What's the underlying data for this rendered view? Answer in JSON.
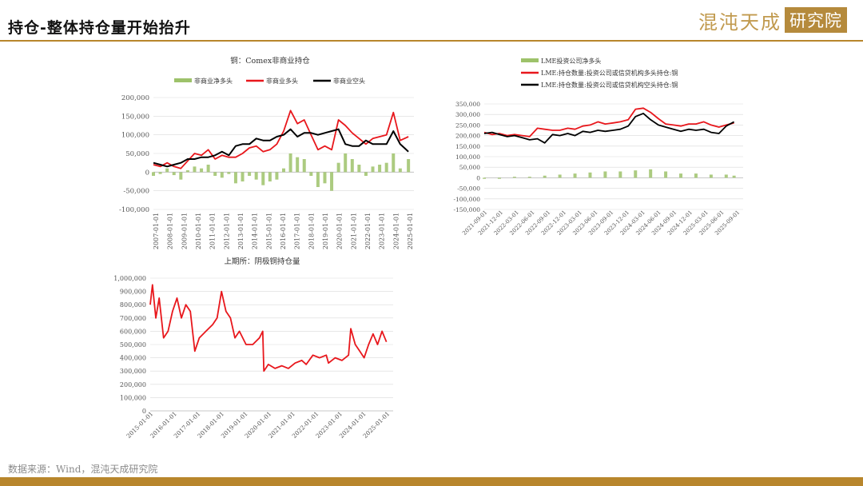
{
  "page": {
    "title": "持仓-整体持仓量开始抬升",
    "logo_text": "混沌天成",
    "logo_box": "研究院",
    "source": "数据来源：Wind，混沌天成研究院"
  },
  "colors": {
    "net_long": "#9dc26a",
    "red": "#e8171c",
    "black": "#000000",
    "gold": "#b8862c"
  },
  "chart_data": [
    {
      "type": "line",
      "title": "铜：Comex非商业持仓",
      "legend": [
        "非商业净多头",
        "非商业多头",
        "非商业空头"
      ],
      "ylim": [
        -100000,
        200000
      ],
      "yticks": [
        "200,000",
        "150,000",
        "100,000",
        "50,000",
        "0",
        "-50,000",
        "-100,000"
      ],
      "xticks": [
        "2007-01-01",
        "2008-01-01",
        "2009-01-01",
        "2010-01-01",
        "2011-01-01",
        "2012-01-01",
        "2013-01-01",
        "2014-01-01",
        "2015-01-01",
        "2016-01-01",
        "2017-01-01",
        "2018-01-01",
        "2019-01-01",
        "2020-01-01",
        "2021-01-01",
        "2022-01-01",
        "2023-01-01",
        "2024-01-01",
        "2025-01-01"
      ],
      "series": [
        {
          "name": "非商业净多头",
          "style": "bar",
          "x": [
            2007,
            2007.5,
            2008,
            2008.5,
            2009,
            2009.5,
            2010,
            2010.5,
            2011,
            2011.5,
            2012,
            2012.5,
            2013,
            2013.5,
            2014,
            2014.5,
            2015,
            2015.5,
            2016,
            2016.5,
            2017,
            2017.5,
            2018,
            2018.5,
            2019,
            2019.5,
            2020,
            2020.5,
            2021,
            2021.5,
            2022,
            2022.5,
            2023,
            2023.5,
            2024,
            2024.5,
            2025,
            2025.6
          ],
          "values": [
            -10000,
            -5000,
            10000,
            -8000,
            -20000,
            5000,
            15000,
            10000,
            20000,
            -10000,
            -15000,
            -5000,
            -30000,
            -25000,
            -10000,
            -20000,
            -35000,
            -25000,
            -20000,
            10000,
            50000,
            40000,
            35000,
            -10000,
            -40000,
            -30000,
            -50000,
            25000,
            50000,
            35000,
            20000,
            -10000,
            15000,
            20000,
            25000,
            50000,
            10000,
            35000
          ]
        },
        {
          "name": "非商业多头",
          "style": "line",
          "x": [
            2007,
            2007.5,
            2008,
            2008.5,
            2009,
            2009.5,
            2010,
            2010.5,
            2011,
            2011.5,
            2012,
            2012.5,
            2013,
            2013.5,
            2014,
            2014.5,
            2015,
            2015.5,
            2016,
            2016.5,
            2017,
            2017.5,
            2018,
            2018.5,
            2019,
            2019.5,
            2020,
            2020.5,
            2021,
            2021.5,
            2022,
            2022.5,
            2023,
            2023.5,
            2024,
            2024.5,
            2025,
            2025.6
          ],
          "values": [
            20000,
            15000,
            25000,
            15000,
            10000,
            30000,
            50000,
            45000,
            60000,
            35000,
            45000,
            40000,
            40000,
            50000,
            65000,
            70000,
            55000,
            60000,
            75000,
            110000,
            165000,
            130000,
            140000,
            100000,
            60000,
            70000,
            60000,
            140000,
            125000,
            105000,
            90000,
            75000,
            90000,
            95000,
            100000,
            160000,
            85000,
            95000
          ]
        },
        {
          "name": "非商业空头",
          "style": "line",
          "x": [
            2007,
            2007.5,
            2008,
            2008.5,
            2009,
            2009.5,
            2010,
            2010.5,
            2011,
            2011.5,
            2012,
            2012.5,
            2013,
            2013.5,
            2014,
            2014.5,
            2015,
            2015.5,
            2016,
            2016.5,
            2017,
            2017.5,
            2018,
            2018.5,
            2019,
            2019.5,
            2020,
            2020.5,
            2021,
            2021.5,
            2022,
            2022.5,
            2023,
            2023.5,
            2024,
            2024.5,
            2025,
            2025.6
          ],
          "values": [
            25000,
            20000,
            15000,
            20000,
            25000,
            35000,
            35000,
            40000,
            40000,
            45000,
            55000,
            45000,
            70000,
            75000,
            75000,
            90000,
            85000,
            85000,
            95000,
            100000,
            115000,
            95000,
            105000,
            105000,
            100000,
            105000,
            110000,
            115000,
            75000,
            70000,
            70000,
            85000,
            75000,
            75000,
            75000,
            110000,
            75000,
            55000
          ]
        }
      ]
    },
    {
      "type": "line",
      "title": "",
      "legend": [
        "LME投资公司净多头",
        "LME:持仓数量:投资公司或信贷机构多头持仓:铜",
        "LME:持仓数量:投资公司或信贷机构空头持仓:铜"
      ],
      "ylim": [
        -150000,
        350000
      ],
      "yticks": [
        "350,000",
        "300,000",
        "250,000",
        "200,000",
        "150,000",
        "100,000",
        "50,000",
        "0",
        "-50,000",
        "-100,000",
        "-150,000"
      ],
      "xticks": [
        "2021-09-01",
        "2021-12-01",
        "2022-03-01",
        "2022-06-01",
        "2022-09-01",
        "2022-12-01",
        "2023-03-01",
        "2023-06-01",
        "2023-09-01",
        "2023-12-01",
        "2024-03-01",
        "2024-06-01",
        "2024-09-01",
        "2024-12-01",
        "2025-03-01",
        "2025-06-01",
        "2025-09-01"
      ],
      "series": [
        {
          "name": "LME投资公司净多头",
          "style": "bar",
          "x": [
            2021.67,
            2021.92,
            2022.17,
            2022.42,
            2022.67,
            2022.92,
            2023.17,
            2023.42,
            2023.67,
            2023.92,
            2024.17,
            2024.42,
            2024.67,
            2024.92,
            2025.17,
            2025.42,
            2025.67,
            2025.8
          ],
          "values": [
            -5000,
            -5000,
            5000,
            5000,
            10000,
            15000,
            20000,
            25000,
            30000,
            30000,
            35000,
            40000,
            30000,
            20000,
            20000,
            15000,
            15000,
            10000
          ]
        },
        {
          "name": "LME:持仓数量:投资公司或信贷机构多头持仓:铜",
          "style": "line",
          "x": [
            2021.67,
            2021.8,
            2021.92,
            2022.05,
            2022.17,
            2022.3,
            2022.42,
            2022.55,
            2022.67,
            2022.8,
            2022.92,
            2023.05,
            2023.17,
            2023.3,
            2023.42,
            2023.55,
            2023.67,
            2023.8,
            2023.92,
            2024.05,
            2024.17,
            2024.3,
            2024.42,
            2024.55,
            2024.67,
            2024.8,
            2024.92,
            2025.05,
            2025.17,
            2025.3,
            2025.42,
            2025.55,
            2025.67,
            2025.8
          ],
          "values": [
            215000,
            205000,
            210000,
            200000,
            205000,
            200000,
            195000,
            235000,
            230000,
            225000,
            225000,
            235000,
            230000,
            245000,
            250000,
            265000,
            255000,
            260000,
            265000,
            275000,
            325000,
            330000,
            310000,
            280000,
            255000,
            250000,
            245000,
            255000,
            255000,
            265000,
            250000,
            240000,
            250000,
            260000
          ]
        },
        {
          "name": "LME:持仓数量:投资公司或信贷机构空头持仓:铜",
          "style": "line",
          "x": [
            2021.67,
            2021.8,
            2021.92,
            2022.05,
            2022.17,
            2022.3,
            2022.42,
            2022.55,
            2022.67,
            2022.8,
            2022.92,
            2023.05,
            2023.17,
            2023.3,
            2023.42,
            2023.55,
            2023.67,
            2023.8,
            2023.92,
            2024.05,
            2024.17,
            2024.3,
            2024.42,
            2024.55,
            2024.67,
            2024.8,
            2024.92,
            2025.05,
            2025.17,
            2025.3,
            2025.42,
            2025.55,
            2025.67,
            2025.8
          ],
          "values": [
            210000,
            215000,
            205000,
            195000,
            200000,
            190000,
            180000,
            185000,
            165000,
            205000,
            200000,
            210000,
            200000,
            220000,
            215000,
            225000,
            220000,
            225000,
            230000,
            245000,
            290000,
            305000,
            275000,
            250000,
            240000,
            230000,
            220000,
            230000,
            225000,
            230000,
            215000,
            210000,
            245000,
            265000
          ]
        }
      ]
    },
    {
      "type": "line",
      "title": "上期所：阴极铜持仓量",
      "ylim": [
        0,
        1000000
      ],
      "yticks": [
        "1,000,000",
        "900,000",
        "800,000",
        "700,000",
        "600,000",
        "500,000",
        "400,000",
        "300,000",
        "200,000",
        "100,000",
        "0"
      ],
      "xticks": [
        "2015-01-01",
        "2016-01-01",
        "2017-01-01",
        "2018-01-01",
        "2019-01-01",
        "2020-01-01",
        "2021-01-01",
        "2022-01-01",
        "2023-01-01",
        "2024-01-01",
        "2025-01-01"
      ],
      "series": [
        {
          "name": "",
          "x": [
            2015,
            2015.1,
            2015.25,
            2015.4,
            2015.6,
            2015.8,
            2016,
            2016.2,
            2016.4,
            2016.6,
            2016.8,
            2017,
            2017.2,
            2017.5,
            2017.8,
            2018,
            2018.2,
            2018.4,
            2018.6,
            2018.8,
            2019,
            2019.3,
            2019.6,
            2019.9,
            2020.05,
            2020.1,
            2020.3,
            2020.6,
            2020.9,
            2021.2,
            2021.5,
            2021.8,
            2022,
            2022.3,
            2022.6,
            2022.9,
            2023,
            2023.3,
            2023.6,
            2023.9,
            2024,
            2024.2,
            2024.4,
            2024.6,
            2024.8,
            2025,
            2025.2,
            2025.4,
            2025.6
          ],
          "values": [
            800000,
            950000,
            700000,
            850000,
            550000,
            600000,
            750000,
            850000,
            700000,
            800000,
            750000,
            450000,
            550000,
            600000,
            650000,
            700000,
            900000,
            750000,
            700000,
            550000,
            600000,
            500000,
            500000,
            550000,
            600000,
            300000,
            350000,
            320000,
            340000,
            320000,
            360000,
            380000,
            350000,
            420000,
            400000,
            420000,
            360000,
            400000,
            380000,
            420000,
            620000,
            500000,
            450000,
            400000,
            500000,
            580000,
            500000,
            600000,
            520000
          ]
        }
      ]
    }
  ]
}
